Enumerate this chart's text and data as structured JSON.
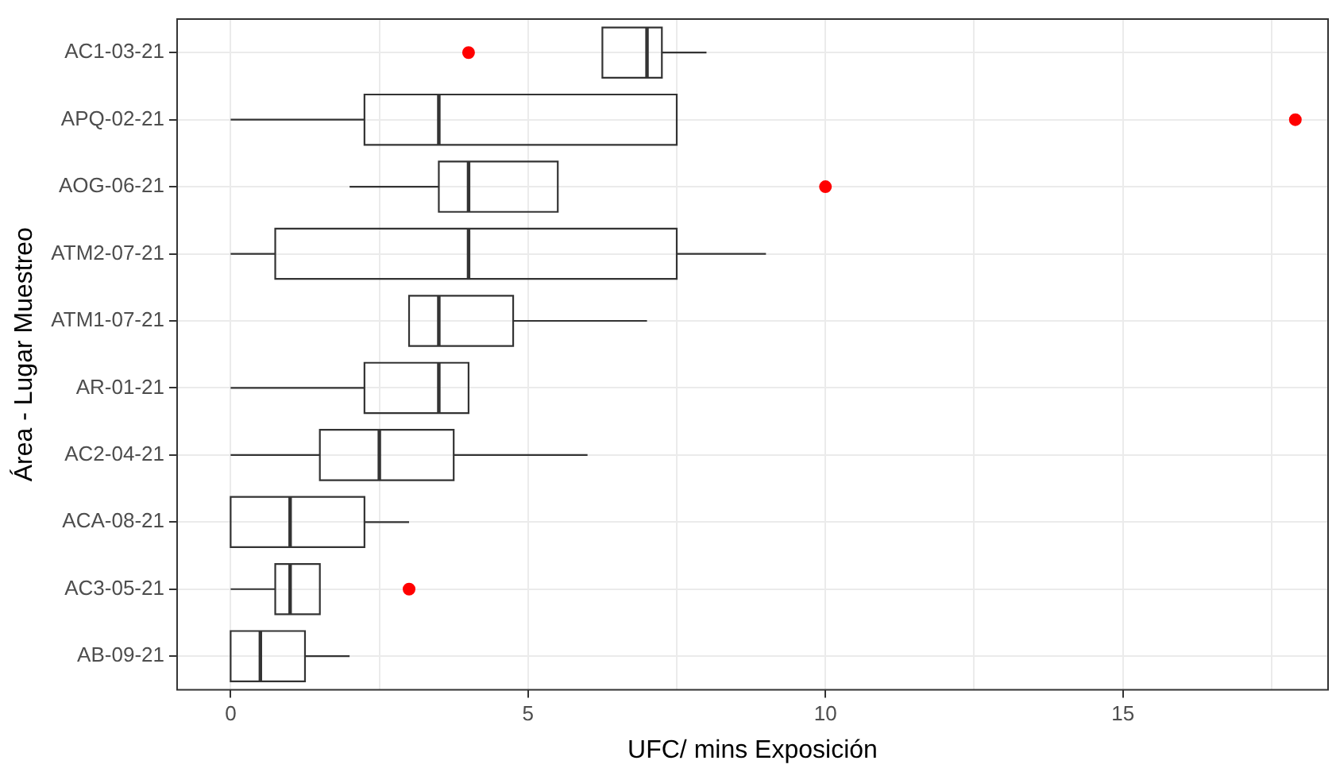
{
  "chart_data": {
    "type": "box",
    "orientation": "horizontal",
    "xlabel": "UFC/ mins Exposición",
    "ylabel": "Área - Lugar Muestreo",
    "categories": [
      "AC1-03-21",
      "APQ-02-21",
      "AOG-06-21",
      "ATM2-07-21",
      "ATM1-07-21",
      "AR-01-21",
      "AC2-04-21",
      "ACA-08-21",
      "AC3-05-21",
      "AB-09-21"
    ],
    "series": [
      {
        "color": "#333333",
        "boxes": [
          {
            "low": 6.25,
            "q1": 6.25,
            "median": 7,
            "q3": 7.25,
            "high": 8,
            "outliers": [
              4
            ]
          },
          {
            "low": 0,
            "q1": 2.25,
            "median": 3.5,
            "q3": 7.5,
            "high": 7.5,
            "outliers": [
              17.9
            ]
          },
          {
            "low": 2,
            "q1": 3.5,
            "median": 4,
            "q3": 5.5,
            "high": 5.5,
            "outliers": [
              10
            ]
          },
          {
            "low": 0,
            "q1": 0.75,
            "median": 4,
            "q3": 7.5,
            "high": 9
          },
          {
            "low": 3,
            "q1": 3,
            "median": 3.5,
            "q3": 4.75,
            "high": 7
          },
          {
            "low": 0,
            "q1": 2.25,
            "median": 3.5,
            "q3": 4,
            "high": 4
          },
          {
            "low": 0,
            "q1": 1.5,
            "median": 2.5,
            "q3": 3.75,
            "high": 6
          },
          {
            "low": 0,
            "q1": 0,
            "median": 1,
            "q3": 2.25,
            "high": 3
          },
          {
            "low": 0,
            "q1": 0.75,
            "median": 1,
            "q3": 1.5,
            "high": 1.5,
            "outliers": [
              3
            ]
          },
          {
            "low": 0,
            "q1": 0,
            "median": 0.5,
            "q3": 1.25,
            "high": 2
          }
        ]
      }
    ],
    "xlim": [
      -0.9,
      18.45
    ],
    "xticks": [
      0,
      {
        "value": 2.5,
        "label": null
      },
      5,
      {
        "value": 7.5,
        "label": null
      },
      10,
      {
        "value": 12.5,
        "label": null
      },
      15,
      {
        "value": 17.5,
        "label": null
      }
    ],
    "grid": true,
    "legend": false
  }
}
